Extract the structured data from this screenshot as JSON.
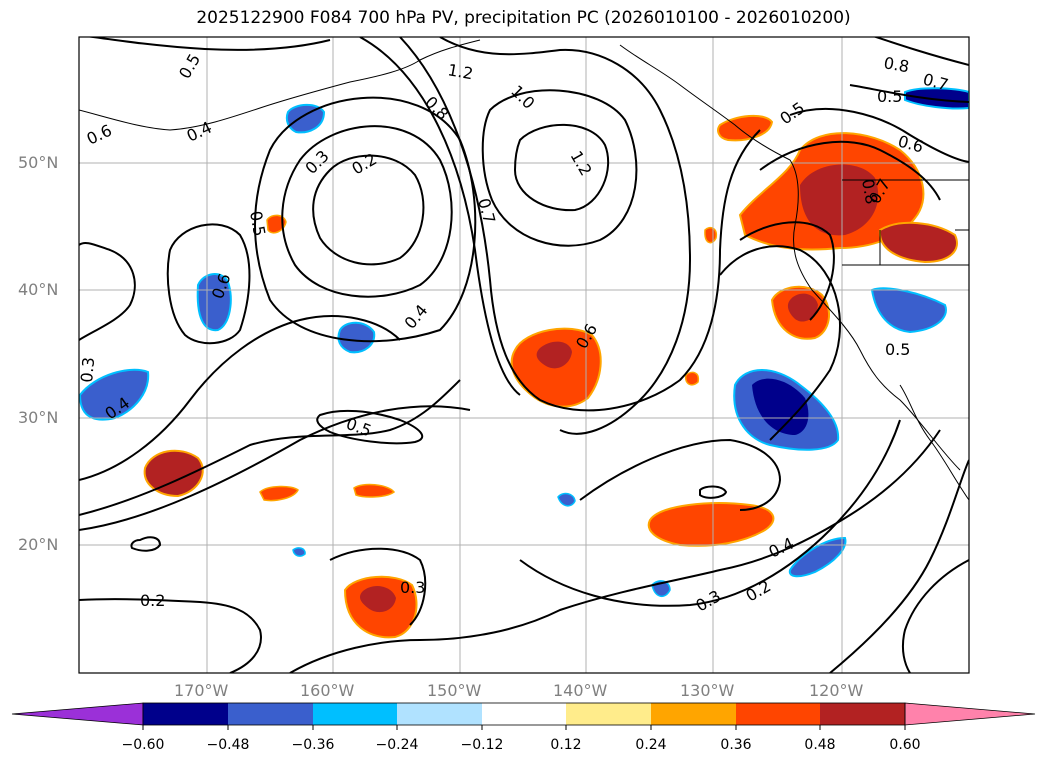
{
  "title": "2025122900 F084 700 hPa PV, precipitation PC (2026010100 - 2026010200)",
  "axes": {
    "lat_ticks": [
      "50°N",
      "40°N",
      "30°N",
      "20°N"
    ],
    "lon_ticks": [
      "170°W",
      "160°W",
      "150°W",
      "140°W",
      "130°W",
      "120°W"
    ]
  },
  "contour_labels": [
    "0.5",
    "0.4",
    "1.2",
    "1.0",
    "0.8",
    "0.3",
    "0.2",
    "1.2",
    "0.7",
    "0.5",
    "0.6",
    "0.4",
    "0.6",
    "0.5",
    "0.3",
    "0.4",
    "0.5",
    "0.2",
    "0.3",
    "0.4",
    "0.3",
    "0.2",
    "0.8",
    "0.7",
    "0.5",
    "0.6",
    "0.7",
    "0.8",
    "0.5",
    "0.6"
  ],
  "colorbar": {
    "ticks": [
      "−0.60",
      "−0.48",
      "−0.36",
      "−0.24",
      "−0.12",
      "0.12",
      "0.24",
      "0.36",
      "0.48",
      "0.60"
    ],
    "colors": [
      "#9b30d8",
      "#00008b",
      "#3a5fcd",
      "#00bfff",
      "#b0e2ff",
      "#ffffff",
      "#ffec8b",
      "#ffa500",
      "#ff4500",
      "#b22222",
      "#ff82ab"
    ]
  }
}
